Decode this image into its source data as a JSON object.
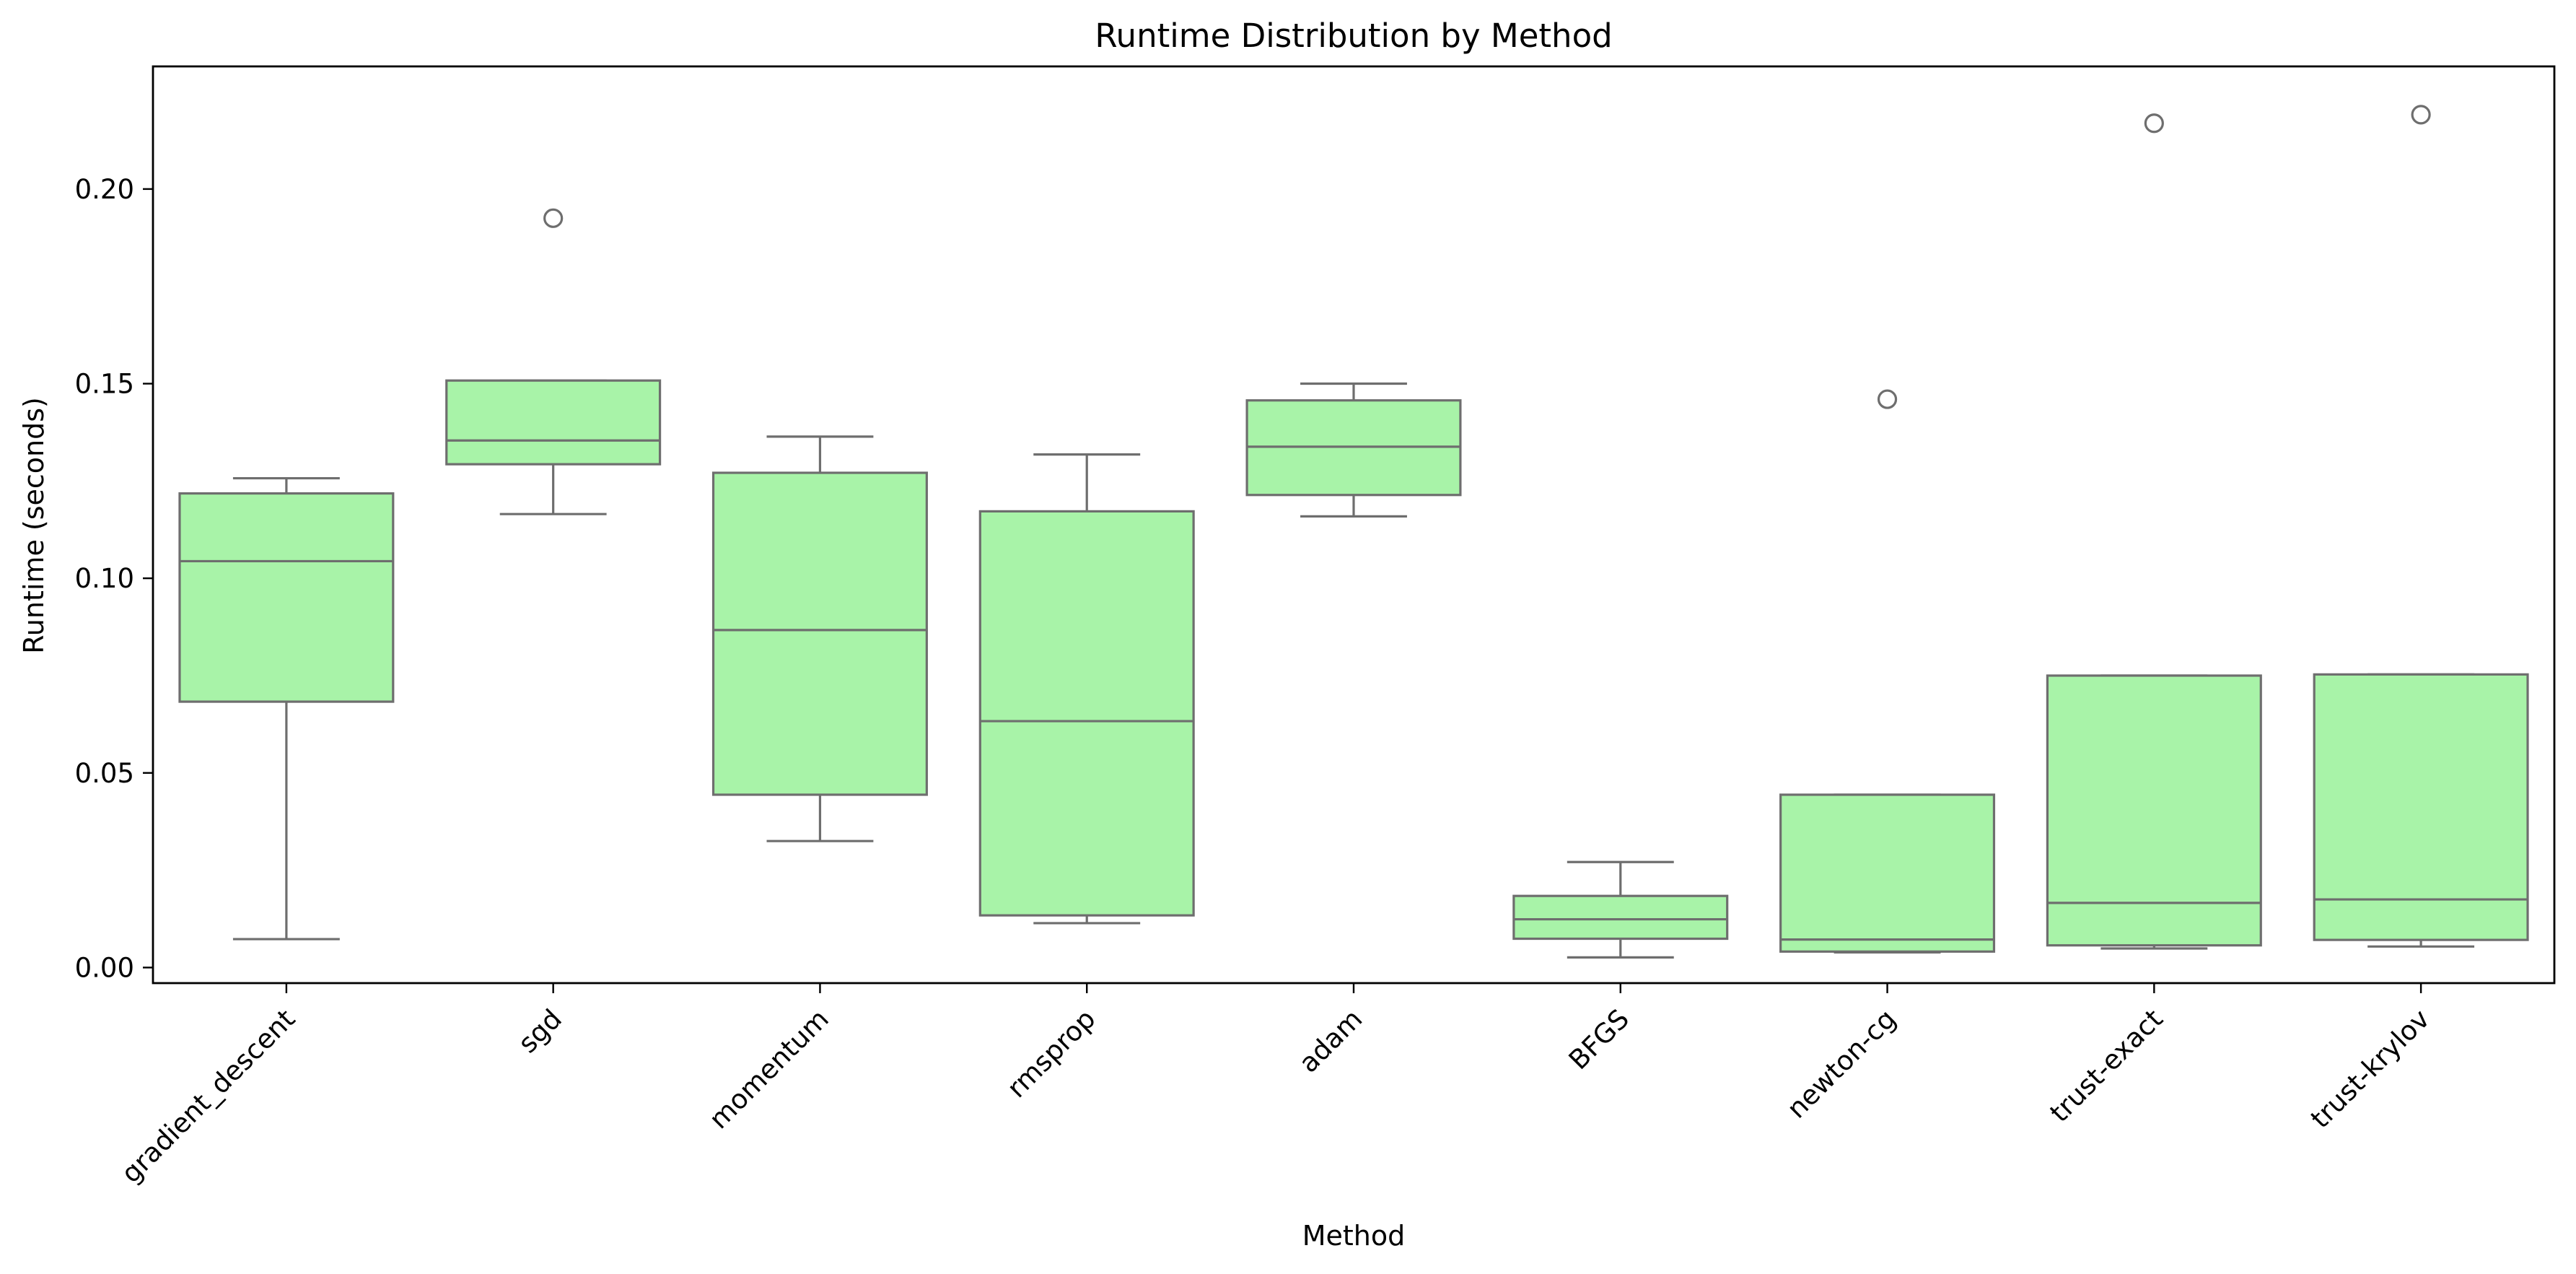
{
  "chart_data": {
    "type": "box",
    "title": "Runtime Distribution by Method",
    "xlabel": "Method",
    "ylabel": "Runtime (seconds)",
    "ylim": [
      -0.004,
      0.2315
    ],
    "yticks": [
      0.0,
      0.05,
      0.1,
      0.15,
      0.2
    ],
    "ytick_labels": [
      "0.00",
      "0.05",
      "0.10",
      "0.15",
      "0.20"
    ],
    "grid": false,
    "box_color": "#a8f3a8",
    "line_color": "#6e6e6e",
    "categories": [
      "gradient_descent",
      "sgd",
      "momentum",
      "rmsprop",
      "adam",
      "BFGS",
      "newton-cg",
      "trust-exact",
      "trust-krylov"
    ],
    "boxes": [
      {
        "label": "gradient_descent",
        "whislo": 0.0073,
        "q1": 0.0683,
        "median": 0.1044,
        "q3": 0.1218,
        "whishi": 0.1257,
        "fliers": []
      },
      {
        "label": "sgd",
        "whislo": 0.1165,
        "q1": 0.1293,
        "median": 0.1354,
        "q3": 0.1508,
        "whishi": 0.1508,
        "fliers": [
          0.1925
        ]
      },
      {
        "label": "momentum",
        "whislo": 0.0325,
        "q1": 0.0444,
        "median": 0.0867,
        "q3": 0.1271,
        "whishi": 0.1364,
        "fliers": []
      },
      {
        "label": "rmsprop",
        "whislo": 0.0114,
        "q1": 0.0134,
        "median": 0.0633,
        "q3": 0.1172,
        "whishi": 0.1318,
        "fliers": []
      },
      {
        "label": "adam",
        "whislo": 0.1159,
        "q1": 0.1214,
        "median": 0.1338,
        "q3": 0.1457,
        "whishi": 0.15,
        "fliers": []
      },
      {
        "label": "BFGS",
        "whislo": 0.0026,
        "q1": 0.0074,
        "median": 0.0124,
        "q3": 0.0184,
        "whishi": 0.0271,
        "fliers": []
      },
      {
        "label": "newton-cg",
        "whislo": 0.0039,
        "q1": 0.0041,
        "median": 0.0072,
        "q3": 0.0444,
        "whishi": 0.0444,
        "fliers": [
          0.146
        ]
      },
      {
        "label": "trust-exact",
        "whislo": 0.0049,
        "q1": 0.0057,
        "median": 0.0166,
        "q3": 0.075,
        "whishi": 0.075,
        "fliers": [
          0.2169
        ]
      },
      {
        "label": "trust-krylov",
        "whislo": 0.0054,
        "q1": 0.0071,
        "median": 0.0175,
        "q3": 0.0753,
        "whishi": 0.0753,
        "fliers": [
          0.2191
        ]
      }
    ]
  }
}
